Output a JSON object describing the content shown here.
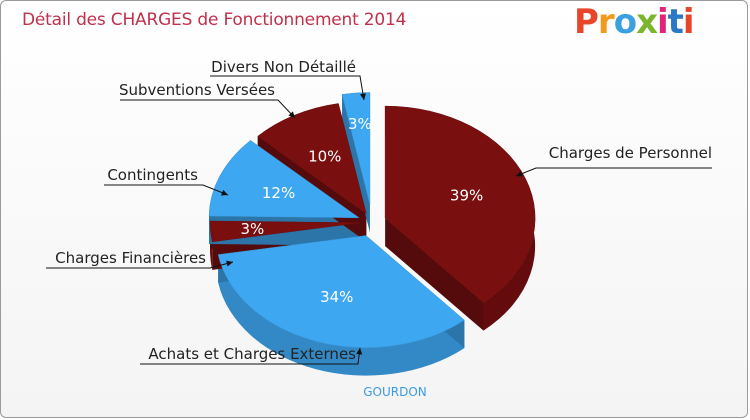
{
  "title": "Détail des CHARGES de Fonctionnement 2014",
  "logo": {
    "text": "Proxiti",
    "colors": [
      "#e8462a",
      "#f29a1e",
      "#3aa0e0",
      "#7ab52c",
      "#e2237a",
      "#2b78c4",
      "#e8462a"
    ]
  },
  "city": "GOURDON",
  "chart_data": {
    "type": "pie",
    "title": "Détail des CHARGES de Fonctionnement 2014",
    "slices": [
      {
        "label": "Charges de Personnel",
        "value": 39,
        "pct_label": "39%",
        "color": "#7a0f10"
      },
      {
        "label": "Achats et Charges Externes",
        "value": 34,
        "pct_label": "34%",
        "color": "#3ea7f2"
      },
      {
        "label": "Charges Financières",
        "value": 3,
        "pct_label": "3%",
        "color": "#7a0f10"
      },
      {
        "label": "Contingents",
        "value": 12,
        "pct_label": "12%",
        "color": "#3ea7f2"
      },
      {
        "label": "Subventions Versées",
        "value": 10,
        "pct_label": "10%",
        "color": "#7a0f10"
      },
      {
        "label": "Divers Non Détaillé",
        "value": 3,
        "pct_label": "3%",
        "color": "#3ea7f2"
      }
    ]
  }
}
